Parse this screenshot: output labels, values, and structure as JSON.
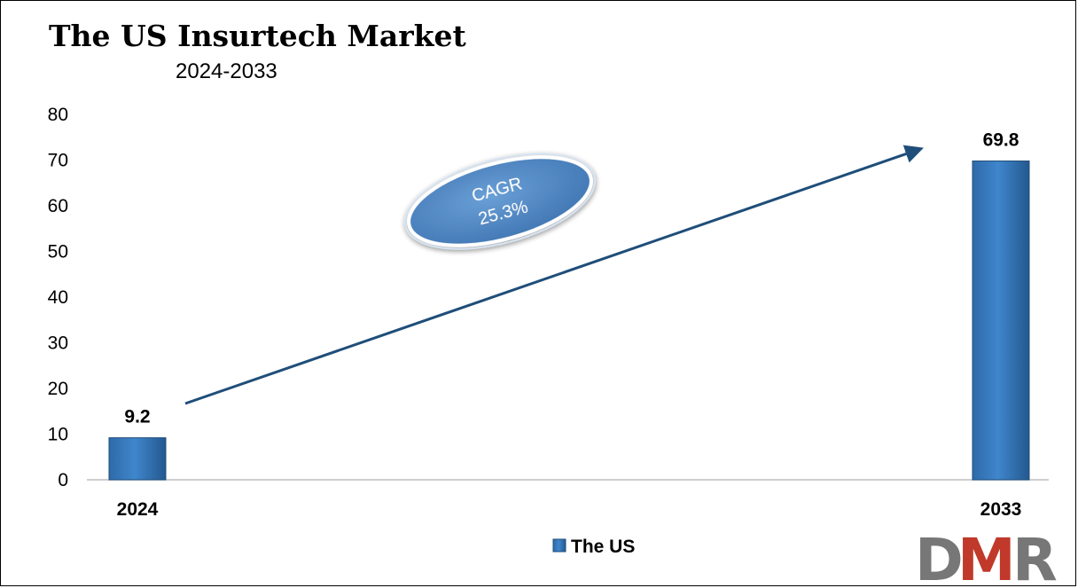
{
  "chart_data": {
    "type": "bar",
    "title": "The US Insurtech Market",
    "subtitle": "2024-2033",
    "categories": [
      "2024",
      "2033"
    ],
    "series": [
      {
        "name": "The US",
        "values": [
          9.2,
          69.8
        ],
        "color": "#2e75b6"
      }
    ],
    "data_labels": [
      "9.2",
      "69.8"
    ],
    "ylim": [
      0,
      80
    ],
    "yticks": [
      0,
      10,
      20,
      30,
      40,
      50,
      60,
      70,
      80
    ],
    "grid": false,
    "legend_position": "bottom",
    "annotation": {
      "line1": "CAGR",
      "line2": "25.3%",
      "fill": "#4f86c6"
    }
  },
  "logo": {
    "text": "DMR",
    "letter_colors": [
      "#777777",
      "#c0392b",
      "#777777"
    ]
  }
}
